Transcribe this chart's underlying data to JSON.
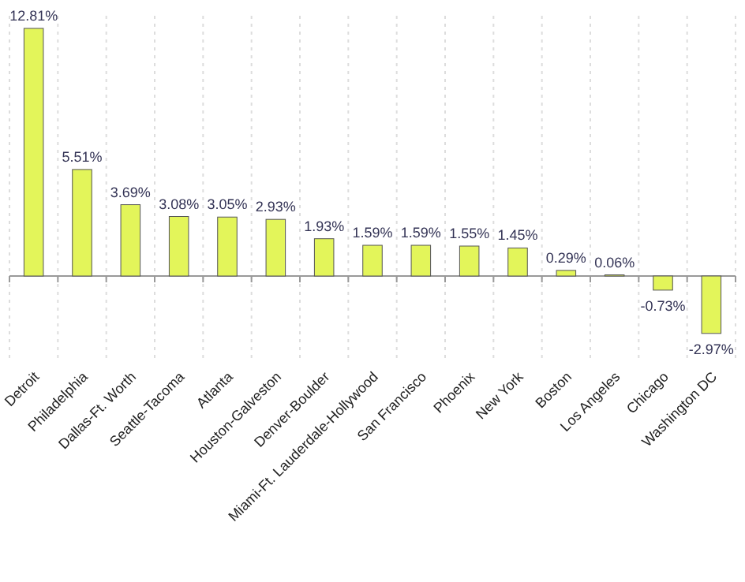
{
  "chart_data": {
    "type": "bar",
    "categories": [
      "Detroit",
      "Philadelphia",
      "Dallas-Ft. Worth",
      "Seattle-Tacoma",
      "Atlanta",
      "Houston-Galveston",
      "Denver-Boulder",
      "Miami-Ft. Lauderdale-Hollywood",
      "San Francisco",
      "Phoenix",
      "New York",
      "Boston",
      "Los Angeles",
      "Chicago",
      "Washington DC"
    ],
    "values": [
      12.81,
      5.51,
      3.69,
      3.08,
      3.05,
      2.93,
      1.93,
      1.59,
      1.59,
      1.55,
      1.45,
      0.29,
      0.06,
      -0.73,
      -2.97
    ],
    "value_labels": [
      "12.81%",
      "5.51%",
      "3.69%",
      "3.08%",
      "3.05%",
      "2.93%",
      "1.93%",
      "1.59%",
      "1.59%",
      "1.55%",
      "1.45%",
      "0.29%",
      "0.06%",
      "-0.73%",
      "-2.97%"
    ],
    "color": "#e3f55a",
    "grid": "x"
  }
}
